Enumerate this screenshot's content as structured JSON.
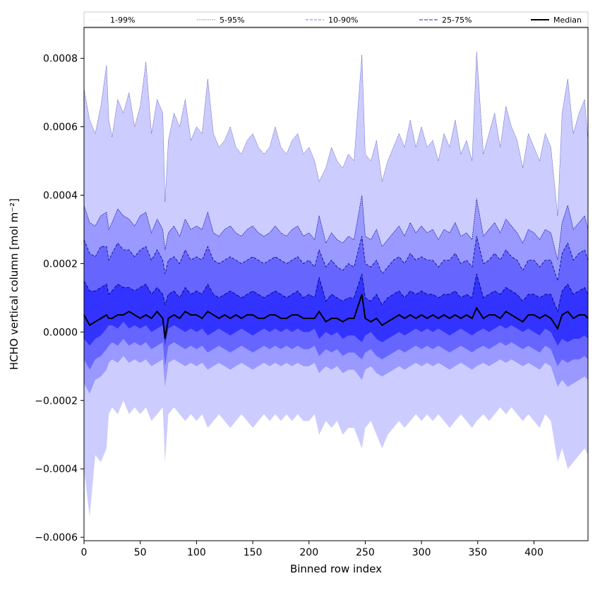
{
  "chart_data": {
    "type": "area",
    "title": "",
    "xlabel": "Binned row index",
    "ylabel": "HCHO vertical column [mol m⁻²]",
    "xlim": [
      0,
      448
    ],
    "ylim": [
      -0.00061,
      0.00089
    ],
    "x_ticks": [
      0,
      50,
      100,
      150,
      200,
      250,
      300,
      350,
      400
    ],
    "y_ticks": [
      -0.0006,
      -0.0004,
      -0.0002,
      0.0,
      0.0002,
      0.0004,
      0.0006,
      0.0008
    ],
    "y_tick_labels": [
      "−0.0006",
      "−0.0004",
      "−0.0002",
      "0.0000",
      "0.0002",
      "0.0004",
      "0.0006",
      "0.0008"
    ],
    "legend": {
      "placement": "top",
      "columns": 5
    },
    "grid": false,
    "x": [
      0,
      5,
      10,
      15,
      20,
      22,
      25,
      30,
      35,
      40,
      45,
      50,
      55,
      60,
      65,
      70,
      72,
      75,
      80,
      85,
      90,
      95,
      100,
      105,
      110,
      115,
      120,
      125,
      130,
      135,
      140,
      145,
      150,
      155,
      160,
      165,
      170,
      175,
      180,
      185,
      190,
      195,
      200,
      205,
      209,
      215,
      220,
      225,
      230,
      235,
      240,
      247,
      250,
      255,
      260,
      265,
      270,
      275,
      280,
      285,
      290,
      295,
      300,
      305,
      310,
      315,
      320,
      325,
      330,
      335,
      340,
      345,
      349,
      355,
      360,
      365,
      370,
      375,
      380,
      385,
      390,
      395,
      400,
      405,
      410,
      415,
      421,
      425,
      430,
      435,
      440,
      445,
      448
    ],
    "series": [
      {
        "name": "1-99%",
        "color": "#ccccff",
        "upper": [
          0.00071,
          0.00062,
          0.00058,
          0.00066,
          0.00078,
          0.00062,
          0.00057,
          0.00068,
          0.00064,
          0.0007,
          0.0006,
          0.00066,
          0.00079,
          0.00058,
          0.00068,
          0.00064,
          0.00038,
          0.00056,
          0.00064,
          0.0006,
          0.00068,
          0.00056,
          0.0006,
          0.00058,
          0.00074,
          0.00058,
          0.00054,
          0.00056,
          0.0006,
          0.00054,
          0.00052,
          0.00056,
          0.00058,
          0.00054,
          0.00052,
          0.00054,
          0.0006,
          0.00054,
          0.00052,
          0.00056,
          0.00058,
          0.00052,
          0.00054,
          0.0005,
          0.00044,
          0.00048,
          0.00054,
          0.0005,
          0.00048,
          0.00052,
          0.0005,
          0.00081,
          0.00052,
          0.0005,
          0.00056,
          0.00044,
          0.0005,
          0.00054,
          0.00058,
          0.00054,
          0.00062,
          0.00054,
          0.0006,
          0.00054,
          0.00056,
          0.0005,
          0.00058,
          0.00054,
          0.00062,
          0.00052,
          0.00056,
          0.0005,
          0.00082,
          0.00052,
          0.00058,
          0.00064,
          0.00054,
          0.00066,
          0.0006,
          0.00056,
          0.00048,
          0.00058,
          0.00054,
          0.0005,
          0.00058,
          0.00054,
          0.00034,
          0.00064,
          0.00074,
          0.00058,
          0.00064,
          0.00068,
          0.00056
        ],
        "lower": [
          -0.0004,
          -0.00054,
          -0.00036,
          -0.00038,
          -0.00034,
          -0.00024,
          -0.00022,
          -0.00024,
          -0.0002,
          -0.00024,
          -0.00022,
          -0.00024,
          -0.00022,
          -0.00026,
          -0.00024,
          -0.00022,
          -0.00038,
          -0.00024,
          -0.00022,
          -0.00024,
          -0.00026,
          -0.00024,
          -0.00026,
          -0.00024,
          -0.00028,
          -0.00026,
          -0.00024,
          -0.00026,
          -0.00028,
          -0.00026,
          -0.00024,
          -0.00026,
          -0.00028,
          -0.00026,
          -0.00024,
          -0.00026,
          -0.00024,
          -0.00026,
          -0.00024,
          -0.00026,
          -0.00024,
          -0.00026,
          -0.00026,
          -0.00024,
          -0.0003,
          -0.00026,
          -0.00028,
          -0.00026,
          -0.0003,
          -0.00028,
          -0.00028,
          -0.00034,
          -0.00028,
          -0.00026,
          -0.0003,
          -0.00034,
          -0.0003,
          -0.00028,
          -0.00026,
          -0.00028,
          -0.00026,
          -0.00024,
          -0.00026,
          -0.00024,
          -0.00026,
          -0.00024,
          -0.00026,
          -0.00028,
          -0.00026,
          -0.00024,
          -0.00026,
          -0.00028,
          -0.00026,
          -0.00024,
          -0.00026,
          -0.00024,
          -0.00022,
          -0.00024,
          -0.00022,
          -0.00024,
          -0.00026,
          -0.00024,
          -0.00026,
          -0.00028,
          -0.00024,
          -0.00026,
          -0.00038,
          -0.00034,
          -0.0004,
          -0.00038,
          -0.00036,
          -0.00034,
          -0.00036
        ]
      },
      {
        "name": "5-95%",
        "color": "#9999ff",
        "upper": [
          0.00037,
          0.00032,
          0.00031,
          0.00034,
          0.00035,
          0.0003,
          0.00032,
          0.00036,
          0.00034,
          0.00033,
          0.00031,
          0.00034,
          0.00035,
          0.00029,
          0.00033,
          0.0003,
          0.00024,
          0.00029,
          0.00031,
          0.00028,
          0.00033,
          0.0003,
          0.00031,
          0.0003,
          0.00035,
          0.00029,
          0.00028,
          0.0003,
          0.00031,
          0.00029,
          0.00028,
          0.0003,
          0.00031,
          0.00029,
          0.00028,
          0.00029,
          0.00031,
          0.00029,
          0.00028,
          0.0003,
          0.00031,
          0.00028,
          0.00029,
          0.00027,
          0.00034,
          0.00026,
          0.00029,
          0.00027,
          0.00026,
          0.00028,
          0.00027,
          0.0004,
          0.00028,
          0.00027,
          0.0003,
          0.00025,
          0.00027,
          0.00029,
          0.00031,
          0.00028,
          0.00032,
          0.00029,
          0.00031,
          0.00029,
          0.0003,
          0.00027,
          0.0003,
          0.00029,
          0.00032,
          0.00028,
          0.00029,
          0.00027,
          0.00039,
          0.00028,
          0.0003,
          0.00032,
          0.00029,
          0.00033,
          0.00031,
          0.00029,
          0.00026,
          0.0003,
          0.00029,
          0.00027,
          0.0003,
          0.00029,
          0.00021,
          0.00032,
          0.00037,
          0.0003,
          0.00032,
          0.00034,
          0.0003
        ],
        "lower": [
          -0.00015,
          -0.00018,
          -0.00014,
          -0.00013,
          -0.00011,
          -9e-05,
          -8e-05,
          -9e-05,
          -7e-05,
          -9e-05,
          -8e-05,
          -9e-05,
          -8e-05,
          -0.0001,
          -9e-05,
          -8e-05,
          -0.00016,
          -9e-05,
          -8e-05,
          -9e-05,
          -0.0001,
          -9e-05,
          -0.0001,
          -9e-05,
          -0.00011,
          -0.0001,
          -9e-05,
          -0.0001,
          -0.00011,
          -0.0001,
          -9e-05,
          -0.0001,
          -0.00011,
          -0.0001,
          -9e-05,
          -0.0001,
          -9e-05,
          -0.0001,
          -9e-05,
          -0.0001,
          -9e-05,
          -0.0001,
          -0.0001,
          -9e-05,
          -0.00012,
          -0.0001,
          -0.00011,
          -0.0001,
          -0.00012,
          -0.00011,
          -0.00011,
          -0.00014,
          -0.00011,
          -0.0001,
          -0.00012,
          -0.00013,
          -0.00012,
          -0.00011,
          -0.0001,
          -0.00011,
          -0.0001,
          -9e-05,
          -0.0001,
          -9e-05,
          -0.0001,
          -9e-05,
          -0.0001,
          -0.00011,
          -0.0001,
          -9e-05,
          -0.0001,
          -0.00011,
          -0.0001,
          -9e-05,
          -0.0001,
          -9e-05,
          -8e-05,
          -9e-05,
          -8e-05,
          -9e-05,
          -0.0001,
          -9e-05,
          -0.0001,
          -0.00011,
          -9e-05,
          -0.0001,
          -0.00016,
          -0.00014,
          -0.00016,
          -0.00015,
          -0.00014,
          -0.00013,
          -0.00014
        ]
      },
      {
        "name": "10-90%",
        "color": "#6666ff",
        "upper": [
          0.00027,
          0.00023,
          0.00022,
          0.00025,
          0.00025,
          0.00021,
          0.00023,
          0.00026,
          0.00024,
          0.00024,
          0.00022,
          0.00024,
          0.00025,
          0.00021,
          0.00024,
          0.00021,
          0.00017,
          0.00021,
          0.00022,
          0.0002,
          0.00024,
          0.00021,
          0.00022,
          0.00021,
          0.00025,
          0.00021,
          0.0002,
          0.00021,
          0.00022,
          0.00021,
          0.0002,
          0.00021,
          0.00022,
          0.00021,
          0.0002,
          0.00021,
          0.00022,
          0.00021,
          0.0002,
          0.00021,
          0.00022,
          0.0002,
          0.00021,
          0.00019,
          0.00024,
          0.00019,
          0.00021,
          0.00019,
          0.00018,
          0.0002,
          0.00019,
          0.00028,
          0.0002,
          0.00019,
          0.00021,
          0.00017,
          0.00019,
          0.00021,
          0.00022,
          0.0002,
          0.00023,
          0.00021,
          0.00022,
          0.00021,
          0.00021,
          0.00019,
          0.00021,
          0.00021,
          0.00023,
          0.0002,
          0.00021,
          0.00019,
          0.00028,
          0.0002,
          0.00021,
          0.00023,
          0.00021,
          0.00024,
          0.00022,
          0.00021,
          0.00018,
          0.00021,
          0.00021,
          0.00019,
          0.00021,
          0.00021,
          0.00015,
          0.00023,
          0.00026,
          0.00021,
          0.00023,
          0.00024,
          0.00021
        ],
        "lower": [
          -8e-05,
          -0.00011,
          -8e-05,
          -7e-05,
          -5e-05,
          -4e-05,
          -3e-05,
          -4e-05,
          -2e-05,
          -4e-05,
          -3e-05,
          -4e-05,
          -3e-05,
          -5e-05,
          -4e-05,
          -3e-05,
          -0.0001,
          -4e-05,
          -3e-05,
          -4e-05,
          -5e-05,
          -4e-05,
          -5e-05,
          -4e-05,
          -6e-05,
          -5e-05,
          -4e-05,
          -5e-05,
          -6e-05,
          -5e-05,
          -4e-05,
          -5e-05,
          -6e-05,
          -5e-05,
          -4e-05,
          -5e-05,
          -4e-05,
          -5e-05,
          -4e-05,
          -5e-05,
          -4e-05,
          -5e-05,
          -5e-05,
          -4e-05,
          -7e-05,
          -5e-05,
          -6e-05,
          -5e-05,
          -7e-05,
          -6e-05,
          -6e-05,
          -8e-05,
          -6e-05,
          -5e-05,
          -7e-05,
          -8e-05,
          -7e-05,
          -6e-05,
          -5e-05,
          -6e-05,
          -5e-05,
          -4e-05,
          -5e-05,
          -4e-05,
          -5e-05,
          -4e-05,
          -5e-05,
          -6e-05,
          -5e-05,
          -4e-05,
          -5e-05,
          -6e-05,
          -5e-05,
          -4e-05,
          -5e-05,
          -4e-05,
          -3e-05,
          -4e-05,
          -3e-05,
          -4e-05,
          -5e-05,
          -4e-05,
          -5e-05,
          -6e-05,
          -4e-05,
          -5e-05,
          -0.0001,
          -8e-05,
          -9e-05,
          -8e-05,
          -8e-05,
          -7e-05,
          -8e-05
        ]
      },
      {
        "name": "25-75%",
        "color": "#3333ff",
        "upper": [
          0.00015,
          0.00012,
          0.00012,
          0.00013,
          0.00014,
          0.00011,
          0.00012,
          0.00014,
          0.00013,
          0.00013,
          0.00012,
          0.00013,
          0.00014,
          0.00011,
          0.00013,
          0.00011,
          8e-05,
          0.00011,
          0.00012,
          0.0001,
          0.00013,
          0.00011,
          0.00012,
          0.00011,
          0.00014,
          0.00011,
          0.0001,
          0.00011,
          0.00012,
          0.00011,
          0.0001,
          0.00011,
          0.00012,
          0.00011,
          0.0001,
          0.00011,
          0.00012,
          0.00011,
          0.0001,
          0.00011,
          0.00012,
          0.0001,
          0.00011,
          0.0001,
          0.00016,
          9e-05,
          0.00011,
          0.0001,
          9e-05,
          0.0001,
          0.0001,
          0.00017,
          0.0001,
          9e-05,
          0.00011,
          8e-05,
          0.0001,
          0.00011,
          0.00012,
          0.0001,
          0.00012,
          0.00011,
          0.00012,
          0.00011,
          0.00011,
          0.0001,
          0.00011,
          0.00011,
          0.00012,
          0.0001,
          0.00011,
          0.0001,
          0.00017,
          0.0001,
          0.00011,
          0.00012,
          0.00011,
          0.00013,
          0.00012,
          0.00011,
          9e-05,
          0.00011,
          0.00011,
          0.0001,
          0.00011,
          0.00011,
          6e-05,
          0.00012,
          0.00014,
          0.00011,
          0.00012,
          0.00013,
          0.00011
        ],
        "lower": [
          -2e-05,
          -4e-05,
          -2e-05,
          -1e-05,
          1e-05,
          2e-05,
          2e-05,
          1e-05,
          3e-05,
          1e-05,
          2e-05,
          1e-05,
          2e-05,
          0.0,
          1e-05,
          2e-05,
          -4e-05,
          1e-05,
          2e-05,
          1e-05,
          0.0,
          1e-05,
          0.0,
          1e-05,
          -1e-05,
          0.0,
          1e-05,
          0.0,
          -1e-05,
          0.0,
          1e-05,
          0.0,
          -1e-05,
          0.0,
          1e-05,
          0.0,
          1e-05,
          0.0,
          1e-05,
          0.0,
          1e-05,
          0.0,
          0.0,
          1e-05,
          -2e-05,
          0.0,
          -1e-05,
          0.0,
          -2e-05,
          -1e-05,
          -1e-05,
          -3e-05,
          -1e-05,
          0.0,
          -2e-05,
          -3e-05,
          -2e-05,
          -1e-05,
          0.0,
          -1e-05,
          0.0,
          1e-05,
          0.0,
          1e-05,
          0.0,
          1e-05,
          0.0,
          -1e-05,
          0.0,
          1e-05,
          0.0,
          -1e-05,
          0.0,
          1e-05,
          0.0,
          1e-05,
          2e-05,
          1e-05,
          2e-05,
          1e-05,
          0.0,
          1e-05,
          0.0,
          -1e-05,
          1e-05,
          0.0,
          -4e-05,
          -2e-05,
          -3e-05,
          -2e-05,
          -2e-05,
          -1e-05,
          -2e-05
        ]
      },
      {
        "name": "Median",
        "color": "#000000",
        "values": [
          5e-05,
          2e-05,
          3e-05,
          4e-05,
          5e-05,
          4e-05,
          4e-05,
          5e-05,
          5e-05,
          6e-05,
          5e-05,
          4e-05,
          5e-05,
          4e-05,
          6e-05,
          4e-05,
          -2e-05,
          4e-05,
          5e-05,
          4e-05,
          6e-05,
          5e-05,
          5e-05,
          4e-05,
          6e-05,
          5e-05,
          4e-05,
          5e-05,
          4e-05,
          5e-05,
          4e-05,
          5e-05,
          5e-05,
          4e-05,
          4e-05,
          5e-05,
          5e-05,
          4e-05,
          4e-05,
          5e-05,
          5e-05,
          4e-05,
          4e-05,
          4e-05,
          6e-05,
          3e-05,
          4e-05,
          4e-05,
          3e-05,
          4e-05,
          4e-05,
          0.00011,
          4e-05,
          3e-05,
          4e-05,
          2e-05,
          3e-05,
          4e-05,
          5e-05,
          4e-05,
          5e-05,
          4e-05,
          5e-05,
          4e-05,
          5e-05,
          4e-05,
          5e-05,
          4e-05,
          5e-05,
          4e-05,
          5e-05,
          4e-05,
          7e-05,
          4e-05,
          5e-05,
          5e-05,
          4e-05,
          6e-05,
          5e-05,
          4e-05,
          3e-05,
          5e-05,
          5e-05,
          4e-05,
          5e-05,
          4e-05,
          1e-05,
          5e-05,
          6e-05,
          4e-05,
          5e-05,
          5e-05,
          4e-05
        ]
      }
    ]
  }
}
